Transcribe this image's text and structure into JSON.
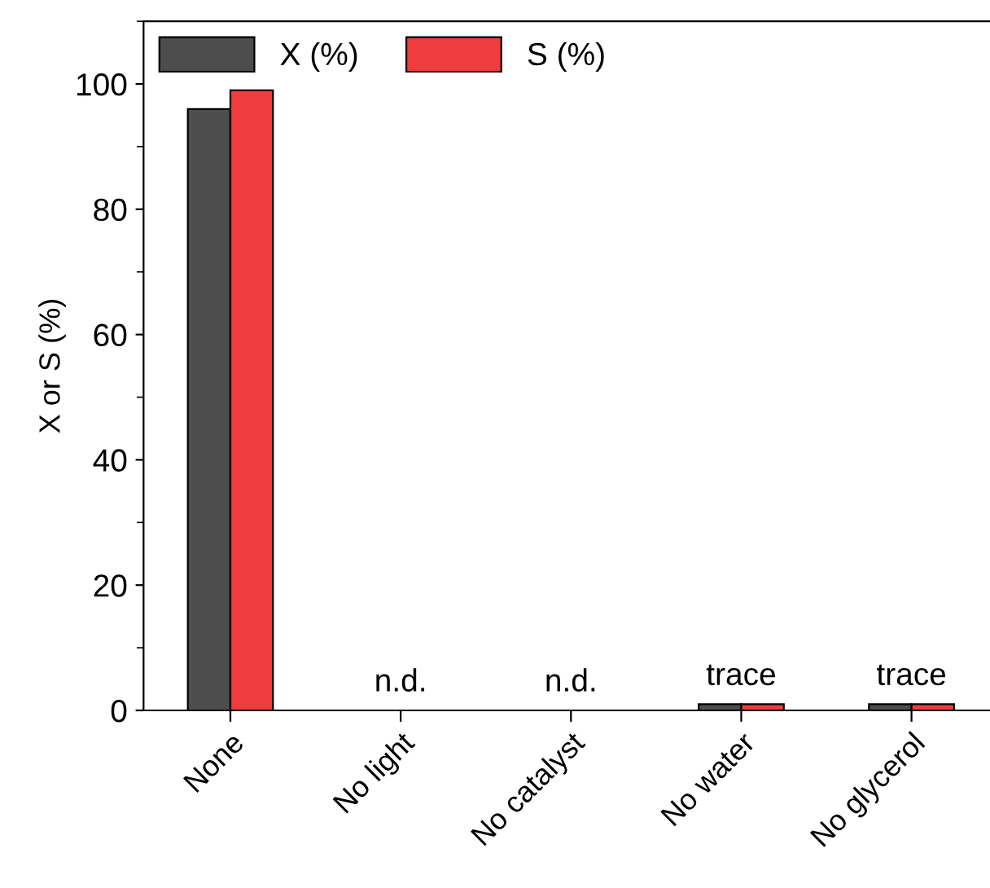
{
  "chart_data": {
    "type": "bar",
    "ylabel": "X or S (%)",
    "categories": [
      "None",
      "No light",
      "No catalyst",
      "No water",
      "No glycerol"
    ],
    "series": [
      {
        "name": "X (%)",
        "color": "#4d4d4d",
        "values": [
          96,
          0,
          0,
          1,
          1
        ],
        "value_labels": [
          null,
          "n.d.",
          "n.d.",
          "trace",
          "trace"
        ]
      },
      {
        "name": "S (%)",
        "color": "#f03c3e",
        "values": [
          99,
          0,
          0,
          1,
          1
        ]
      }
    ],
    "ylim": [
      0,
      110
    ],
    "yticks": [
      0,
      20,
      40,
      60,
      80,
      100
    ],
    "grid": false,
    "legend": "top left"
  }
}
